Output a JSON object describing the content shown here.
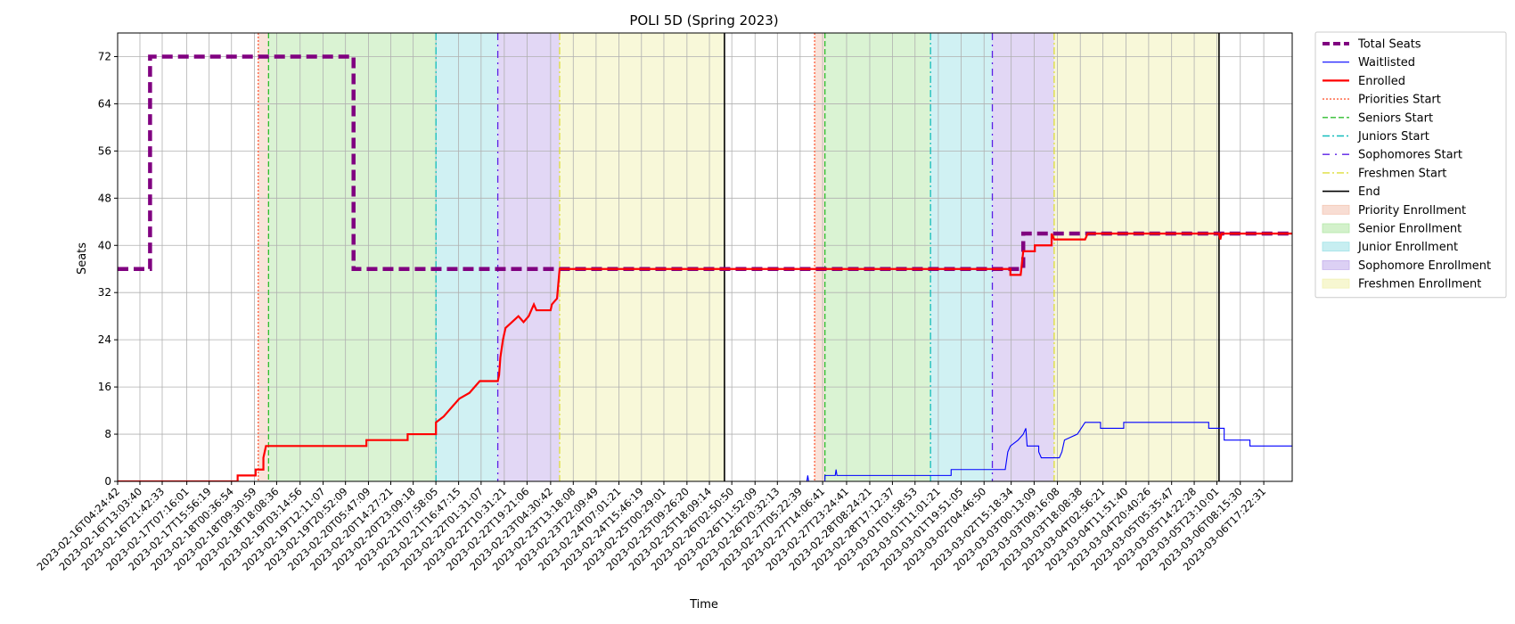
{
  "chart_data": {
    "type": "line",
    "title": "POLI 5D (Spring 2023)",
    "xlabel": "Time",
    "ylabel": "Seats",
    "ylim": [
      0,
      76
    ],
    "yticks": [
      0,
      8,
      16,
      24,
      32,
      40,
      48,
      56,
      64,
      72
    ],
    "x_start": "2023-02-16T04:24:42",
    "x_end": "2023-03-07T04:24:42",
    "xticks": [
      "2023-02-16T04:24:42",
      "2023-02-16T13:03:40",
      "2023-02-16T21:42:33",
      "2023-02-17T07:16:01",
      "2023-02-17T15:56:19",
      "2023-02-18T00:36:54",
      "2023-02-18T09:30:59",
      "2023-02-18T18:08:36",
      "2023-02-19T03:14:56",
      "2023-02-19T12:11:07",
      "2023-02-19T20:52:09",
      "2023-02-20T05:47:09",
      "2023-02-20T14:27:21",
      "2023-02-20T23:09:18",
      "2023-02-21T07:58:05",
      "2023-02-21T16:47:15",
      "2023-02-22T01:31:07",
      "2023-02-22T10:31:21",
      "2023-02-22T19:21:06",
      "2023-02-23T04:30:42",
      "2023-02-23T13:18:08",
      "2023-02-23T22:09:49",
      "2023-02-24T07:01:21",
      "2023-02-24T15:46:19",
      "2023-02-25T00:29:01",
      "2023-02-25T09:26:20",
      "2023-02-25T18:09:14",
      "2023-02-26T02:50:50",
      "2023-02-26T11:52:09",
      "2023-02-26T20:32:13",
      "2023-02-27T05:22:39",
      "2023-02-27T14:06:41",
      "2023-02-27T23:24:41",
      "2023-02-28T08:24:21",
      "2023-02-28T17:12:37",
      "2023-03-01T01:58:53",
      "2023-03-01T11:01:21",
      "2023-03-01T19:51:05",
      "2023-03-02T04:46:50",
      "2023-03-02T15:18:34",
      "2023-03-03T00:13:09",
      "2023-03-03T09:16:08",
      "2023-03-03T18:08:38",
      "2023-03-04T02:56:21",
      "2023-03-04T11:51:40",
      "2023-03-04T20:40:26",
      "2023-03-05T05:35:47",
      "2023-03-05T14:22:28",
      "2023-03-05T23:10:01",
      "2023-03-06T08:15:30",
      "2023-03-06T17:22:31"
    ],
    "grid": true,
    "legend_position": "outside-right",
    "phases": [
      {
        "name": "Priority Enrollment",
        "start": "2023-02-18T11:00:00",
        "end": "2023-02-18T15:00:00",
        "color": "#f4c7b5"
      },
      {
        "name": "Senior Enrollment",
        "start": "2023-02-18T15:00:00",
        "end": "2023-02-21T08:00:00",
        "color": "#b5e8a8"
      },
      {
        "name": "Junior Enrollment",
        "start": "2023-02-21T08:00:00",
        "end": "2023-02-22T08:00:00",
        "color": "#a2e3e8"
      },
      {
        "name": "Sophomore Enrollment",
        "start": "2023-02-22T08:00:00",
        "end": "2023-02-23T08:00:00",
        "color": "#c5b0ec"
      },
      {
        "name": "Freshmen Enrollment",
        "start": "2023-02-23T08:00:00",
        "end": "2023-02-26T00:00:00",
        "color": "#f2f2b3"
      },
      {
        "name": "Priority Enrollment",
        "start": "2023-02-27T11:00:00",
        "end": "2023-02-27T15:00:00",
        "color": "#f4c7b5"
      },
      {
        "name": "Senior Enrollment",
        "start": "2023-02-27T15:00:00",
        "end": "2023-03-01T08:00:00",
        "color": "#b5e8a8"
      },
      {
        "name": "Junior Enrollment",
        "start": "2023-03-01T08:00:00",
        "end": "2023-03-02T08:00:00",
        "color": "#a2e3e8"
      },
      {
        "name": "Sophomore Enrollment",
        "start": "2023-03-02T08:00:00",
        "end": "2023-03-03T08:00:00",
        "color": "#c5b0ec"
      },
      {
        "name": "Freshmen Enrollment",
        "start": "2023-03-03T08:00:00",
        "end": "2023-03-06T00:00:00",
        "color": "#f2f2b3"
      }
    ],
    "markers": [
      {
        "name": "Priorities Start",
        "x": "2023-02-18T11:00:00",
        "color": "#ff5a36",
        "dash": "2,2"
      },
      {
        "name": "Seniors Start",
        "x": "2023-02-18T15:00:00",
        "color": "#2ebd2e",
        "dash": "6,3"
      },
      {
        "name": "Juniors Start",
        "x": "2023-02-21T08:00:00",
        "color": "#14bdbd",
        "dash": "8,3,2,3"
      },
      {
        "name": "Sophomores Start",
        "x": "2023-02-22T08:00:00",
        "color": "#5a1ee6",
        "dash": "8,5,2,5"
      },
      {
        "name": "Freshmen Start",
        "x": "2023-02-23T08:00:00",
        "color": "#dede3a",
        "dash": "8,3,2,3"
      },
      {
        "name": "End",
        "x": "2023-02-26T00:00:00",
        "color": "#000000",
        "dash": ""
      },
      {
        "name": "Priorities Start",
        "x": "2023-02-27T11:00:00",
        "color": "#ff5a36",
        "dash": "2,2"
      },
      {
        "name": "Seniors Start",
        "x": "2023-02-27T15:00:00",
        "color": "#2ebd2e",
        "dash": "6,3"
      },
      {
        "name": "Juniors Start",
        "x": "2023-03-01T08:00:00",
        "color": "#14bdbd",
        "dash": "8,3,2,3"
      },
      {
        "name": "Sophomores Start",
        "x": "2023-03-02T08:00:00",
        "color": "#5a1ee6",
        "dash": "8,5,2,5"
      },
      {
        "name": "Freshmen Start",
        "x": "2023-03-03T08:00:00",
        "color": "#dede3a",
        "dash": "8,3,2,3"
      },
      {
        "name": "End",
        "x": "2023-03-06T00:00:00",
        "color": "#000000",
        "dash": ""
      }
    ],
    "series": [
      {
        "name": "Total Seats",
        "color": "#800080",
        "style": "dashed-thick",
        "points": [
          [
            "2023-02-16T04:24:42",
            36
          ],
          [
            "2023-02-16T17:00:00",
            36
          ],
          [
            "2023-02-16T17:00:00",
            72
          ],
          [
            "2023-02-20T00:00:00",
            72
          ],
          [
            "2023-02-20T00:00:00",
            36
          ],
          [
            "2023-03-02T20:00:00",
            36
          ],
          [
            "2023-03-02T20:00:00",
            42
          ],
          [
            "2023-03-07T04:24:42",
            42
          ]
        ]
      },
      {
        "name": "Waitlisted",
        "color": "#0000ff",
        "style": "solid-thin",
        "points": [
          [
            "2023-02-16T04:24:42",
            0
          ],
          [
            "2023-02-27T08:00:00",
            0
          ],
          [
            "2023-02-27T08:20:00",
            1
          ],
          [
            "2023-02-27T08:40:00",
            0
          ],
          [
            "2023-02-27T15:00:00",
            0
          ],
          [
            "2023-02-27T15:00:00",
            1
          ],
          [
            "2023-02-27T19:00:00",
            1
          ],
          [
            "2023-02-27T19:20:00",
            2
          ],
          [
            "2023-02-27T19:40:00",
            1
          ],
          [
            "2023-03-01T16:00:00",
            1
          ],
          [
            "2023-03-01T16:00:00",
            2
          ],
          [
            "2023-03-02T13:00:00",
            2
          ],
          [
            "2023-03-02T14:00:00",
            5
          ],
          [
            "2023-03-02T15:00:00",
            6
          ],
          [
            "2023-03-02T18:00:00",
            7
          ],
          [
            "2023-03-02T20:00:00",
            8
          ],
          [
            "2023-03-02T21:00:00",
            9
          ],
          [
            "2023-03-02T21:30:00",
            6
          ],
          [
            "2023-03-03T02:00:00",
            6
          ],
          [
            "2023-03-03T02:00:00",
            5
          ],
          [
            "2023-03-03T03:00:00",
            4
          ],
          [
            "2023-03-03T10:00:00",
            4
          ],
          [
            "2023-03-03T11:00:00",
            5
          ],
          [
            "2023-03-03T12:00:00",
            7
          ],
          [
            "2023-03-03T17:00:00",
            8
          ],
          [
            "2023-03-03T20:00:00",
            10
          ],
          [
            "2023-03-04T02:00:00",
            10
          ],
          [
            "2023-03-04T02:00:00",
            9
          ],
          [
            "2023-03-04T11:00:00",
            9
          ],
          [
            "2023-03-04T11:00:00",
            10
          ],
          [
            "2023-03-05T20:00:00",
            10
          ],
          [
            "2023-03-05T20:00:00",
            9
          ],
          [
            "2023-03-06T02:00:00",
            9
          ],
          [
            "2023-03-06T02:00:00",
            7
          ],
          [
            "2023-03-06T12:00:00",
            7
          ],
          [
            "2023-03-06T12:00:00",
            6
          ],
          [
            "2023-03-07T04:24:42",
            6
          ]
        ]
      },
      {
        "name": "Enrolled",
        "color": "#ff0000",
        "style": "solid-thick",
        "points": [
          [
            "2023-02-16T04:24:42",
            0
          ],
          [
            "2023-02-18T03:00:00",
            0
          ],
          [
            "2023-02-18T03:00:00",
            1
          ],
          [
            "2023-02-18T10:00:00",
            1
          ],
          [
            "2023-02-18T10:00:00",
            2
          ],
          [
            "2023-02-18T13:00:00",
            2
          ],
          [
            "2023-02-18T13:00:00",
            4
          ],
          [
            "2023-02-18T14:00:00",
            6
          ],
          [
            "2023-02-20T05:00:00",
            6
          ],
          [
            "2023-02-20T05:00:00",
            7
          ],
          [
            "2023-02-20T21:00:00",
            7
          ],
          [
            "2023-02-20T21:00:00",
            8
          ],
          [
            "2023-02-21T08:00:00",
            8
          ],
          [
            "2023-02-21T08:00:00",
            10
          ],
          [
            "2023-02-21T11:00:00",
            11
          ],
          [
            "2023-02-21T13:00:00",
            12
          ],
          [
            "2023-02-21T17:00:00",
            14
          ],
          [
            "2023-02-21T21:00:00",
            15
          ],
          [
            "2023-02-22T01:00:00",
            17
          ],
          [
            "2023-02-22T08:00:00",
            17
          ],
          [
            "2023-02-22T08:30:00",
            18
          ],
          [
            "2023-02-22T09:00:00",
            21
          ],
          [
            "2023-02-22T10:00:00",
            24
          ],
          [
            "2023-02-22T11:00:00",
            26
          ],
          [
            "2023-02-22T16:00:00",
            28
          ],
          [
            "2023-02-22T18:00:00",
            27
          ],
          [
            "2023-02-22T20:00:00",
            28
          ],
          [
            "2023-02-22T22:00:00",
            30
          ],
          [
            "2023-02-22T23:00:00",
            29
          ],
          [
            "2023-02-23T04:30:00",
            29
          ],
          [
            "2023-02-23T05:00:00",
            30
          ],
          [
            "2023-02-23T07:00:00",
            31
          ],
          [
            "2023-02-23T08:00:00",
            36
          ],
          [
            "2023-03-02T15:00:00",
            36
          ],
          [
            "2023-03-02T15:00:00",
            35
          ],
          [
            "2023-03-02T19:00:00",
            35
          ],
          [
            "2023-03-02T20:00:00",
            39
          ],
          [
            "2023-03-03T00:30:00",
            39
          ],
          [
            "2023-03-03T00:30:00",
            40
          ],
          [
            "2023-03-03T07:00:00",
            40
          ],
          [
            "2023-03-03T07:00:00",
            42
          ],
          [
            "2023-03-03T08:00:00",
            41
          ],
          [
            "2023-03-03T20:00:00",
            41
          ],
          [
            "2023-03-03T21:00:00",
            42
          ],
          [
            "2023-03-06T00:00:00",
            42
          ],
          [
            "2023-03-06T00:30:00",
            41
          ],
          [
            "2023-03-06T01:00:00",
            42
          ],
          [
            "2023-03-07T04:24:42",
            42
          ]
        ]
      }
    ],
    "legend": [
      {
        "label": "Total Seats",
        "kind": "line",
        "color": "#800080",
        "dash": "8,4",
        "width": 4
      },
      {
        "label": "Waitlisted",
        "kind": "line",
        "color": "#0000ff",
        "dash": "",
        "width": 1.2
      },
      {
        "label": "Enrolled",
        "kind": "line",
        "color": "#ff0000",
        "dash": "",
        "width": 2.2
      },
      {
        "label": "Priorities Start",
        "kind": "line",
        "color": "#ff5a36",
        "dash": "2,2",
        "width": 1.4
      },
      {
        "label": "Seniors Start",
        "kind": "line",
        "color": "#2ebd2e",
        "dash": "6,3",
        "width": 1.4
      },
      {
        "label": "Juniors Start",
        "kind": "line",
        "color": "#14bdbd",
        "dash": "8,3,2,3",
        "width": 1.4
      },
      {
        "label": "Sophomores Start",
        "kind": "line",
        "color": "#5a1ee6",
        "dash": "8,6,2,6",
        "width": 1.4
      },
      {
        "label": "Freshmen Start",
        "kind": "line",
        "color": "#dede3a",
        "dash": "8,3,2,3",
        "width": 1.4
      },
      {
        "label": "End",
        "kind": "line",
        "color": "#000000",
        "dash": "",
        "width": 1.6
      },
      {
        "label": "Priority Enrollment",
        "kind": "patch",
        "color": "#f4c7b5"
      },
      {
        "label": "Senior Enrollment",
        "kind": "patch",
        "color": "#b5e8a8"
      },
      {
        "label": "Junior Enrollment",
        "kind": "patch",
        "color": "#a2e3e8"
      },
      {
        "label": "Sophomore Enrollment",
        "kind": "patch",
        "color": "#c5b0ec"
      },
      {
        "label": "Freshmen Enrollment",
        "kind": "patch",
        "color": "#f2f2b3"
      }
    ]
  }
}
